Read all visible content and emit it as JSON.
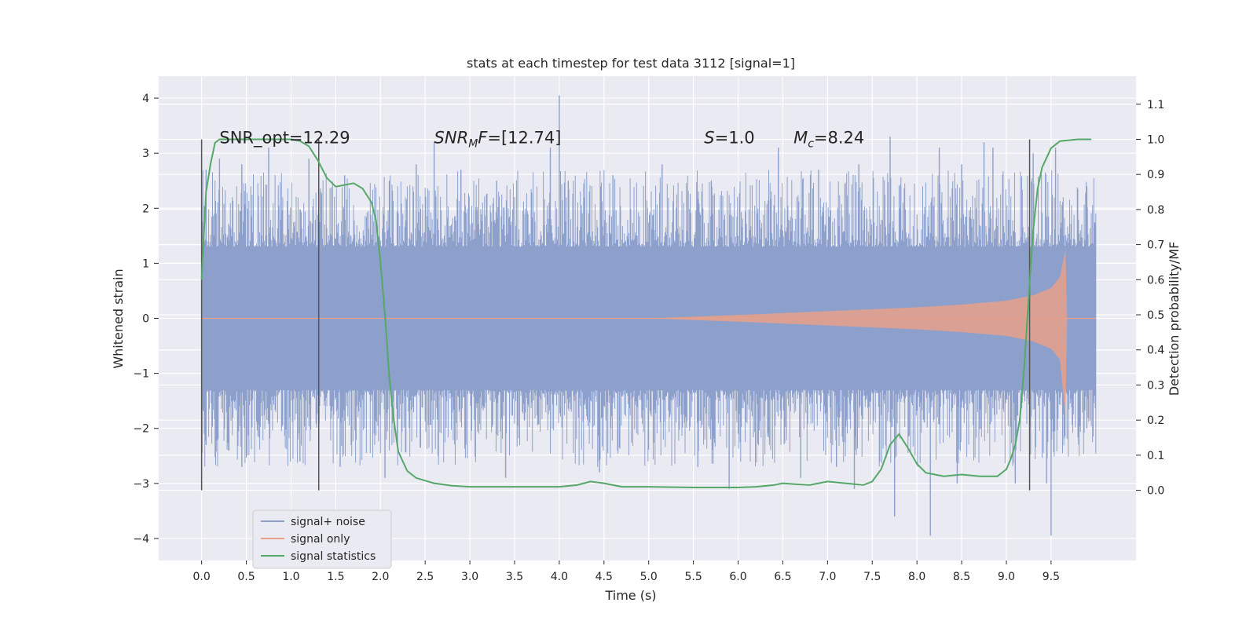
{
  "chart_data": {
    "type": "line",
    "title": "stats at each timestep for test data 3112 [signal=1]",
    "xlabel": "Time (s)",
    "ylabel_left": "Whitened strain",
    "ylabel_right": "Detection probability/MF",
    "xlim": [
      -0.48,
      10.45
    ],
    "ylim_left": [
      -4.4,
      4.4
    ],
    "ylim_right": [
      -0.2,
      1.18
    ],
    "x_ticks": [
      "0.0",
      "0.5",
      "1.0",
      "1.5",
      "2.0",
      "2.5",
      "3.0",
      "3.5",
      "4.0",
      "4.5",
      "5.0",
      "5.5",
      "6.0",
      "6.5",
      "7.0",
      "7.5",
      "8.0",
      "8.5",
      "9.0",
      "9.5"
    ],
    "x_tick_values": [
      0,
      0.5,
      1,
      1.5,
      2,
      2.5,
      3,
      3.5,
      4,
      4.5,
      5,
      5.5,
      6,
      6.5,
      7,
      7.5,
      8,
      8.5,
      9,
      9.5
    ],
    "y_ticks_left": [
      "−4",
      "−3",
      "−2",
      "−1",
      "0",
      "1",
      "2",
      "3",
      "4"
    ],
    "y_tick_values_left": [
      -4,
      -3,
      -2,
      -1,
      0,
      1,
      2,
      3,
      4
    ],
    "y_ticks_right": [
      "0.0",
      "0.1",
      "0.2",
      "0.3",
      "0.4",
      "0.5",
      "0.6",
      "0.7",
      "0.8",
      "0.9",
      "1.0",
      "1.1"
    ],
    "y_tick_values_right": [
      0,
      0.1,
      0.2,
      0.3,
      0.4,
      0.5,
      0.6,
      0.7,
      0.8,
      0.9,
      1.0,
      1.1
    ],
    "grid": true,
    "legend_position": "lower-left",
    "legend": [
      "signal+ noise",
      "signal only",
      "signal statistics"
    ],
    "colors": {
      "noise": "#8da0cb",
      "signal": "#e8a08a",
      "stats": "#55a868",
      "vline": "#555555"
    },
    "series": [
      {
        "name": "signal+ noise",
        "axis": "left",
        "kind": "noisy_band",
        "x_range": [
          0,
          10
        ],
        "core_amplitude": 1.3,
        "peak_samples": [
          [
            0.05,
            2.7
          ],
          [
            0.2,
            2.9
          ],
          [
            0.45,
            2.8
          ],
          [
            0.75,
            3.1
          ],
          [
            1.2,
            2.9
          ],
          [
            1.6,
            2.6
          ],
          [
            2.1,
            2.5
          ],
          [
            2.4,
            2.8
          ],
          [
            2.6,
            3.2
          ],
          [
            2.9,
            2.7
          ],
          [
            3.3,
            2.5
          ],
          [
            3.9,
            3.1
          ],
          [
            4.0,
            4.05
          ],
          [
            4.1,
            2.5
          ],
          [
            4.6,
            2.6
          ],
          [
            5.15,
            2.8
          ],
          [
            5.7,
            2.5
          ],
          [
            6.45,
            3.1
          ],
          [
            6.9,
            2.7
          ],
          [
            7.35,
            2.8
          ],
          [
            7.7,
            3.3
          ],
          [
            8.25,
            3.1
          ],
          [
            8.5,
            2.8
          ],
          [
            8.75,
            3.2
          ],
          [
            8.85,
            3.1
          ],
          [
            9.3,
            3.0
          ],
          [
            9.55,
            3.1
          ],
          [
            9.9,
            2.4
          ]
        ],
        "trough_samples": [
          [
            0.05,
            -2.3
          ],
          [
            0.45,
            -2.7
          ],
          [
            1.1,
            -2.6
          ],
          [
            1.55,
            -2.7
          ],
          [
            2.05,
            -2.9
          ],
          [
            3.4,
            -2.9
          ],
          [
            4.45,
            -2.8
          ],
          [
            5.55,
            -2.7
          ],
          [
            5.9,
            -3.1
          ],
          [
            6.7,
            -2.9
          ],
          [
            7.1,
            -2.7
          ],
          [
            7.3,
            -3.1
          ],
          [
            7.75,
            -3.6
          ],
          [
            8.15,
            -3.95
          ],
          [
            8.45,
            -3.0
          ],
          [
            9.1,
            -3.0
          ],
          [
            9.45,
            -3.0
          ],
          [
            9.5,
            -3.95
          ],
          [
            9.9,
            -2.0
          ]
        ]
      },
      {
        "name": "signal only",
        "axis": "left",
        "kind": "chirp_envelope",
        "envelope": [
          [
            5.0,
            0.0
          ],
          [
            6.0,
            0.06
          ],
          [
            7.0,
            0.13
          ],
          [
            8.0,
            0.2
          ],
          [
            8.5,
            0.25
          ],
          [
            9.0,
            0.32
          ],
          [
            9.3,
            0.42
          ],
          [
            9.5,
            0.55
          ],
          [
            9.6,
            0.75
          ],
          [
            9.66,
            1.25
          ],
          [
            9.68,
            0.0
          ]
        ]
      },
      {
        "name": "signal statistics",
        "axis": "right",
        "kind": "line",
        "x": [
          0.0,
          0.05,
          0.1,
          0.15,
          0.2,
          0.3,
          0.5,
          0.7,
          0.9,
          1.0,
          1.1,
          1.2,
          1.3,
          1.4,
          1.5,
          1.6,
          1.7,
          1.8,
          1.9,
          1.95,
          2.0,
          2.05,
          2.1,
          2.15,
          2.2,
          2.3,
          2.4,
          2.6,
          2.8,
          3.0,
          3.5,
          4.0,
          4.2,
          4.35,
          4.5,
          4.7,
          5.0,
          5.5,
          6.0,
          6.2,
          6.4,
          6.5,
          6.6,
          6.8,
          7.0,
          7.2,
          7.4,
          7.5,
          7.6,
          7.7,
          7.8,
          7.9,
          8.0,
          8.1,
          8.2,
          8.3,
          8.5,
          8.7,
          8.9,
          9.0,
          9.05,
          9.1,
          9.15,
          9.2,
          9.25,
          9.3,
          9.35,
          9.4,
          9.5,
          9.6,
          9.8,
          9.95
        ],
        "y": [
          0.6,
          0.85,
          0.93,
          0.99,
          1.0,
          1.0,
          1.0,
          1.0,
          1.0,
          1.0,
          0.995,
          0.98,
          0.94,
          0.89,
          0.865,
          0.87,
          0.875,
          0.86,
          0.82,
          0.77,
          0.65,
          0.5,
          0.32,
          0.2,
          0.11,
          0.055,
          0.035,
          0.02,
          0.013,
          0.01,
          0.01,
          0.01,
          0.015,
          0.025,
          0.02,
          0.01,
          0.01,
          0.008,
          0.008,
          0.01,
          0.015,
          0.02,
          0.018,
          0.015,
          0.025,
          0.02,
          0.015,
          0.025,
          0.06,
          0.13,
          0.16,
          0.12,
          0.075,
          0.05,
          0.045,
          0.04,
          0.045,
          0.04,
          0.04,
          0.06,
          0.09,
          0.13,
          0.2,
          0.35,
          0.55,
          0.74,
          0.86,
          0.92,
          0.975,
          0.995,
          1.0,
          1.0
        ]
      }
    ],
    "vertical_lines": [
      0.0,
      1.31,
      9.26
    ],
    "vertical_line_range": [
      0.0,
      1.0
    ],
    "annotations": [
      {
        "text": "SNR_opt=12.29",
        "x": 0.2,
        "y": 3.18
      },
      {
        "text": "SNR_MF=[12.74]",
        "x": 2.6,
        "y": 3.18,
        "italic_sub": "M",
        "html": true
      },
      {
        "text": "S=1.0",
        "x": 5.62,
        "y": 3.18
      },
      {
        "text": "Mc=8.24",
        "x": 6.62,
        "y": 3.18
      }
    ]
  }
}
